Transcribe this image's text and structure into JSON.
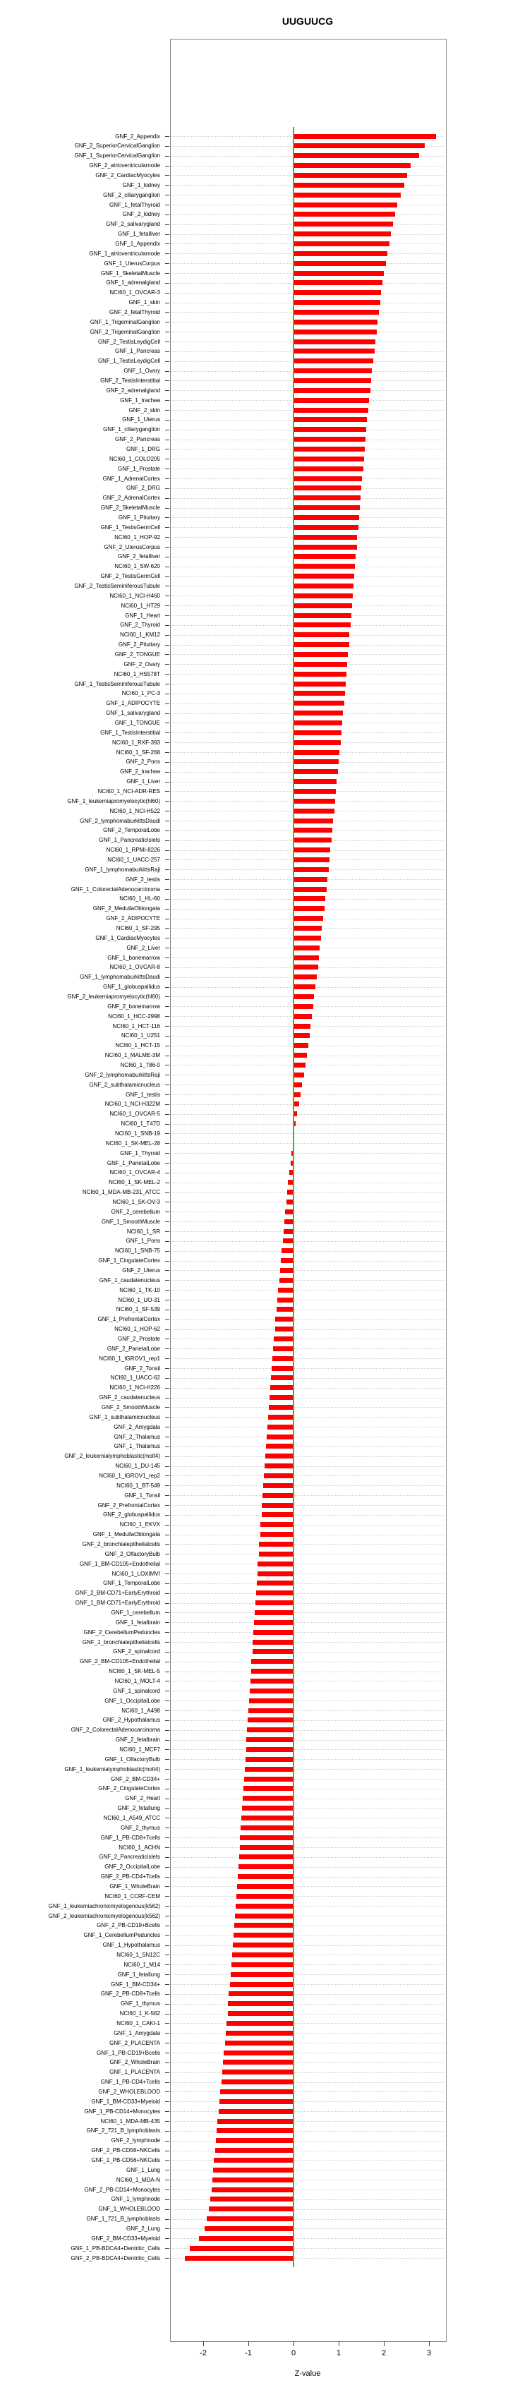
{
  "title": "UUGUUCG",
  "xlabel": "Z-value",
  "chart_data": {
    "type": "bar",
    "orientation": "horizontal",
    "title": "UUGUUCG",
    "xlabel": "Z-value",
    "x_ticks": [
      -2,
      -1,
      0,
      1,
      2,
      3
    ],
    "xlim": [
      -2.73,
      3.36
    ],
    "bar_color": "#ff0000",
    "zero_line_color": "#00e000",
    "grid": "dotted-row-leaders",
    "legend": "none",
    "categories": [
      "GNF_2_Appendix",
      "GNF_2_SuperiorCervicalGanglion",
      "GNF_1_SuperiorCervicalGanglion",
      "GNF_2_atrioventricularnode",
      "GNF_2_CardiacMyocytes",
      "GNF_1_kidney",
      "GNF_2_ciliaryganglion",
      "GNF_1_fetalThyroid",
      "GNF_2_kidney",
      "GNF_2_salivarygland",
      "GNF_1_fetalliver",
      "GNF_1_Appendix",
      "GNF_1_atrioventricularnode",
      "GNF_1_UterusCorpus",
      "GNF_1_SkeletalMuscle",
      "GNF_1_adrenalgland",
      "NCI60_1_OVCAR-3",
      "GNF_1_skin",
      "GNF_2_fetalThyroid",
      "GNF_1_TrigeminalGanglion",
      "GNF_2_TrigeminalGanglion",
      "GNF_2_TestisLeydigCell",
      "GNF_1_Pancreas",
      "GNF_1_TestisLeydigCell",
      "GNF_1_Ovary",
      "GNF_2_TestisInterstitial",
      "GNF_2_adrenalgland",
      "GNF_1_trachea",
      "GNF_2_skin",
      "GNF_1_Uterus",
      "GNF_1_ciliaryganglion",
      "GNF_2_Pancreas",
      "GNF_1_DRG",
      "NCI60_1_COLO205",
      "GNF_1_Prostate",
      "GNF_1_AdrenalCortex",
      "GNF_2_DRG",
      "GNF_2_AdrenalCortex",
      "GNF_2_SkeletalMuscle",
      "GNF_1_Pituitary",
      "GNF_1_TestisGermCell",
      "NCI60_1_HOP-92",
      "GNF_2_UterusCorpus",
      "GNF_2_fetalliver",
      "NCI60_1_SW-620",
      "GNF_2_TestisGermCell",
      "GNF_2_TestisSeminiferousTubule",
      "NCI60_1_NCI-H460",
      "NCI60_1_HT29",
      "GNF_1_Heart",
      "GNF_2_Thyroid",
      "NCI60_1_KM12",
      "GNF_2_Pituitary",
      "GNF_2_TONGUE",
      "GNF_2_Ovary",
      "NCI60_1_HS578T",
      "GNF_1_TestisSeminiferousTubule",
      "NCI60_1_PC-3",
      "GNF_1_ADIPOCYTE",
      "GNF_1_salivarygland",
      "GNF_1_TONGUE",
      "GNF_1_TestisInterstitial",
      "NCI60_1_RXF-393",
      "NCI60_1_SF-268",
      "GNF_2_Pons",
      "GNF_2_trachea",
      "GNF_1_Liver",
      "NCI60_1_NCI-ADR-RES",
      "GNF_1_leukemiapromyelocytic(hl60)",
      "NCI60_1_NCI-H522",
      "GNF_2_lymphomaburkittsDaudi",
      "GNF_2_TemporalLobe",
      "GNF_1_PancreaticIslets",
      "NCI60_1_RPMI-8226",
      "NCI60_1_UACC-257",
      "GNF_1_lymphomaburkittsRaji",
      "GNF_2_testis",
      "GNF_1_ColorectalAdenocarcinoma",
      "NCI60_1_HL-60",
      "GNF_2_MedullaOblongata",
      "GNF_2_ADIPOCYTE",
      "NCI60_1_SF-295",
      "GNF_1_CardiacMyocytes",
      "GNF_2_Liver",
      "GNF_1_bonemarrow",
      "NCI60_1_OVCAR-8",
      "GNF_1_lymphomaburkittsDaudi",
      "GNF_1_globuspallidus",
      "GNF_2_leukemiapromyelocytic(hl60)",
      "GNF_2_bonemarrow",
      "NCI60_1_HCC-2998",
      "NCI60_1_HCT-116",
      "NCI60_1_U251",
      "NCI60_1_HCT-15",
      "NCI60_1_MALME-3M",
      "NCI60_1_786-0",
      "GNF_2_lymphomaburkittsRaji",
      "GNF_2_subthalamicnucleus",
      "GNF_1_testis",
      "NCI60_1_NCI-H322M",
      "NCI60_1_OVCAR-5",
      "NCI60_1_T47D",
      "NCI60_1_SNB-19",
      "NCI60_1_SK-MEL-28",
      "GNF_1_Thyroid",
      "GNF_1_ParietalLobe",
      "NCI60_1_OVCAR-4",
      "NCI60_1_SK-MEL-2",
      "NCI60_1_MDA-MB-231_ATCC",
      "NCI60_1_SK-OV-3",
      "GNF_2_cerebellum",
      "GNF_1_SmoothMuscle",
      "NCI60_1_SR",
      "GNF_1_Pons",
      "NCI60_1_SNB-75",
      "GNF_1_CingulateCortex",
      "GNF_2_Uterus",
      "GNF_1_caudatenucleus",
      "NCI60_1_TK-10",
      "NCI60_1_UO-31",
      "NCI60_1_SF-539",
      "GNF_1_PrefrontalCortex",
      "NCI60_1_HOP-62",
      "GNF_2_Prostate",
      "GNF_2_ParietalLobe",
      "NCI60_1_IGROV1_rep1",
      "GNF_2_Tonsil",
      "NCI60_1_UACC-62",
      "NCI60_1_NCI-H226",
      "GNF_2_caudatenucleus",
      "GNF_2_SmoothMuscle",
      "GNF_1_subthalamicnucleus",
      "GNF_2_Amygdala",
      "GNF_2_Thalamus",
      "GNF_1_Thalamus",
      "GNF_2_leukemialymphoblastic(molt4)",
      "NCI60_1_DU-145",
      "NCI60_1_IGROV1_rep2",
      "NCI60_1_BT-549",
      "GNF_1_Tonsil",
      "GNF_2_PrefrontalCortex",
      "GNF_2_globuspallidus",
      "NCI60_1_EKVX",
      "GNF_1_MedullaOblongata",
      "GNF_2_bronchialepithelialcells",
      "GNF_2_OlfactoryBulb",
      "GNF_1_BM-CD105+Endothelial",
      "NCI60_1_LOXIMVI",
      "GNF_1_TemporalLobe",
      "GNF_2_BM-CD71+EarlyErythroid",
      "GNF_1_BM-CD71+EarlyErythroid",
      "GNF_1_cerebellum",
      "GNF_1_fetalbrain",
      "GNF_2_CerebellumPeduncles",
      "GNF_1_bronchialepithelialcells",
      "GNF_2_spinalcord",
      "GNF_2_BM-CD105+Endothelial",
      "NCI60_1_SK-MEL-5",
      "NCI60_1_MOLT-4",
      "GNF_1_spinalcord",
      "GNF_1_OccipitalLobe",
      "NCI60_1_A498",
      "GNF_2_Hypothalamus",
      "GNF_2_ColorectalAdenocarcinoma",
      "GNF_2_fetalbrain",
      "NCI60_1_MCF7",
      "GNF_1_OlfactoryBulb",
      "GNF_1_leukemialymphoblastic(molt4)",
      "GNF_2_BM-CD34+",
      "GNF_2_CingulateCortex",
      "GNF_2_Heart",
      "GNF_2_fetallung",
      "NCI60_1_A549_ATCC",
      "GNF_2_thymus",
      "GNF_1_PB-CD8+Tcells",
      "NCI60_1_ACHN",
      "GNF_2_PancreaticIslets",
      "GNF_2_OccipitalLobe",
      "GNF_2_PB-CD4+Tcells",
      "GNF_1_WholeBrain",
      "NCI60_1_CCRF-CEM",
      "GNF_1_leukemiachronicmyelogenous(k562)",
      "GNF_2_leukemiachronicmyelogenous(k562)",
      "GNF_2_PB-CD19+Bcells",
      "GNF_1_CerebellumPeduncles",
      "GNF_1_Hypothalamus",
      "NCI60_1_SN12C",
      "NCI60_1_M14",
      "GNF_1_fetallung",
      "GNF_1_BM-CD34+",
      "GNF_2_PB-CD8+Tcells",
      "GNF_1_thymus",
      "NCI60_1_K-562",
      "NCI60_1_CAKI-1",
      "GNF_1_Amygdala",
      "GNF_2_PLACENTA",
      "GNF_1_PB-CD19+Bcells",
      "GNF_2_WholeBrain",
      "GNF_1_PLACENTA",
      "GNF_1_PB-CD4+Tcells",
      "GNF_2_WHOLEBLOOD",
      "GNF_1_BM-CD33+Myeloid",
      "GNF_1_PB-CD14+Monocytes",
      "NCI60_1_MDA-MB-435",
      "GNF_2_721_B_lymphoblasts",
      "GNF_2_lymphnode",
      "GNF_2_PB-CD56+NKCells",
      "GNF_1_PB-CD56+NKCells",
      "GNF_1_Lung",
      "NCI60_1_MDA-N",
      "GNF_2_PB-CD14+Monocytes",
      "GNF_1_lymphnode",
      "GNF_1_WHOLEBLOOD",
      "GNF_1_721_B_lymphoblasts",
      "GNF_2_Lung",
      "GNF_2_BM-CD33+Myeloid",
      "GNF_1_PB-BDCA4+Dentritic_Cells",
      "GNF_2_PB-BDCA4+Dentritic_Cells"
    ],
    "values": [
      3.15,
      2.9,
      2.78,
      2.6,
      2.52,
      2.45,
      2.38,
      2.3,
      2.25,
      2.2,
      2.16,
      2.12,
      2.08,
      2.04,
      2.0,
      1.97,
      1.94,
      1.92,
      1.89,
      1.86,
      1.84,
      1.81,
      1.79,
      1.76,
      1.74,
      1.72,
      1.7,
      1.67,
      1.65,
      1.63,
      1.61,
      1.59,
      1.58,
      1.56,
      1.54,
      1.52,
      1.5,
      1.49,
      1.47,
      1.45,
      1.43,
      1.41,
      1.4,
      1.38,
      1.36,
      1.34,
      1.33,
      1.31,
      1.3,
      1.28,
      1.26,
      1.24,
      1.23,
      1.21,
      1.19,
      1.17,
      1.15,
      1.14,
      1.12,
      1.1,
      1.08,
      1.06,
      1.04,
      1.02,
      1.0,
      0.98,
      0.96,
      0.94,
      0.92,
      0.9,
      0.88,
      0.86,
      0.84,
      0.82,
      0.8,
      0.78,
      0.75,
      0.73,
      0.7,
      0.68,
      0.66,
      0.63,
      0.61,
      0.58,
      0.56,
      0.54,
      0.51,
      0.49,
      0.46,
      0.44,
      0.41,
      0.38,
      0.36,
      0.33,
      0.3,
      0.26,
      0.23,
      0.19,
      0.16,
      0.12,
      0.08,
      0.04,
      0.01,
      -0.02,
      -0.05,
      -0.07,
      -0.09,
      -0.12,
      -0.14,
      -0.16,
      -0.18,
      -0.2,
      -0.22,
      -0.24,
      -0.26,
      -0.28,
      -0.3,
      -0.32,
      -0.34,
      -0.36,
      -0.38,
      -0.4,
      -0.41,
      -0.43,
      -0.45,
      -0.47,
      -0.48,
      -0.5,
      -0.51,
      -0.53,
      -0.55,
      -0.56,
      -0.58,
      -0.59,
      -0.61,
      -0.62,
      -0.64,
      -0.65,
      -0.67,
      -0.68,
      -0.7,
      -0.71,
      -0.73,
      -0.74,
      -0.76,
      -0.77,
      -0.79,
      -0.8,
      -0.82,
      -0.83,
      -0.84,
      -0.86,
      -0.87,
      -0.89,
      -0.9,
      -0.91,
      -0.93,
      -0.94,
      -0.96,
      -0.97,
      -0.98,
      -1.0,
      -1.01,
      -1.03,
      -1.04,
      -1.05,
      -1.07,
      -1.08,
      -1.1,
      -1.11,
      -1.12,
      -1.14,
      -1.15,
      -1.17,
      -1.18,
      -1.19,
      -1.21,
      -1.22,
      -1.24,
      -1.25,
      -1.27,
      -1.28,
      -1.3,
      -1.31,
      -1.33,
      -1.34,
      -1.36,
      -1.38,
      -1.39,
      -1.41,
      -1.43,
      -1.45,
      -1.46,
      -1.48,
      -1.5,
      -1.52,
      -1.54,
      -1.56,
      -1.58,
      -1.6,
      -1.62,
      -1.64,
      -1.66,
      -1.68,
      -1.7,
      -1.72,
      -1.74,
      -1.76,
      -1.78,
      -1.8,
      -1.82,
      -1.85,
      -1.88,
      -1.92,
      -1.97,
      -2.1,
      -2.3,
      -2.4
    ]
  }
}
